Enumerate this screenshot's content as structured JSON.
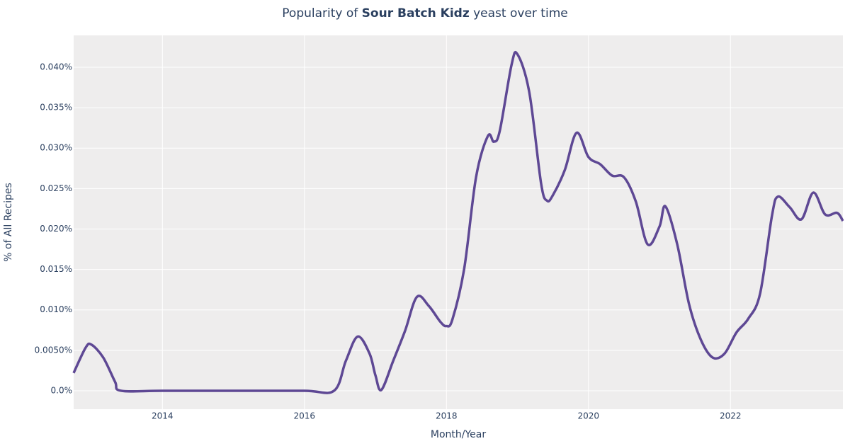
{
  "chart_data": {
    "type": "line",
    "title": {
      "prefix": "Popularity of ",
      "emphasis": "Sour Batch Kidz",
      "suffix": " yeast over time"
    },
    "x_label": "Month/Year",
    "y_label": "% of All Recipes",
    "x": [
      "2012-10",
      "2012-12",
      "2013-01",
      "2013-03",
      "2013-05",
      "2013-06",
      "2014-01",
      "2015-01",
      "2016-01",
      "2016-06",
      "2016-08",
      "2016-10",
      "2016-12",
      "2017-01",
      "2017-02",
      "2017-04",
      "2017-06",
      "2017-08",
      "2017-10",
      "2017-12",
      "2018-01",
      "2018-02",
      "2018-04",
      "2018-06",
      "2018-08",
      "2018-09",
      "2018-10",
      "2018-12",
      "2019-01",
      "2019-03",
      "2019-05",
      "2019-06",
      "2019-07",
      "2019-09",
      "2019-11",
      "2020-01",
      "2020-03",
      "2020-05",
      "2020-07",
      "2020-09",
      "2020-11",
      "2021-01",
      "2021-02",
      "2021-04",
      "2021-06",
      "2021-08",
      "2021-10",
      "2021-12",
      "2022-02",
      "2022-04",
      "2022-06",
      "2022-08",
      "2022-09",
      "2022-11",
      "2023-01",
      "2023-03",
      "2023-05",
      "2023-07",
      "2023-08"
    ],
    "series": [
      {
        "name": "Sour Batch Kidz",
        "color": "#5e4894",
        "values": [
          0.0022,
          0.0053,
          0.0057,
          0.0041,
          0.0011,
          0.0,
          0.0,
          0.0,
          0.0,
          0.0,
          0.0037,
          0.0067,
          0.0046,
          0.0019,
          0.0001,
          0.0037,
          0.0074,
          0.0116,
          0.0105,
          0.0085,
          0.008,
          0.0088,
          0.0151,
          0.0264,
          0.0315,
          0.0308,
          0.0321,
          0.0403,
          0.0416,
          0.0369,
          0.0256,
          0.0235,
          0.0242,
          0.0273,
          0.0319,
          0.0289,
          0.028,
          0.0266,
          0.0264,
          0.0234,
          0.0181,
          0.0203,
          0.0228,
          0.0181,
          0.0107,
          0.0063,
          0.0041,
          0.0046,
          0.0072,
          0.0089,
          0.012,
          0.0216,
          0.024,
          0.0227,
          0.0212,
          0.0245,
          0.0218,
          0.022,
          0.021
        ]
      }
    ],
    "xlim": [
      "2012-10",
      "2023-08"
    ],
    "xticks": [
      {
        "value": "2014-01",
        "label": "2014"
      },
      {
        "value": "2016-01",
        "label": "2016"
      },
      {
        "value": "2018-01",
        "label": "2018"
      },
      {
        "value": "2020-01",
        "label": "2020"
      },
      {
        "value": "2022-01",
        "label": "2022"
      }
    ],
    "ylim": [
      -0.00228,
      0.04394
    ],
    "yticks": [
      {
        "value": 0,
        "label": "0.0%"
      },
      {
        "value": 0.005,
        "label": "0.0050%"
      },
      {
        "value": 0.01,
        "label": "0.010%"
      },
      {
        "value": 0.015,
        "label": "0.015%"
      },
      {
        "value": 0.02,
        "label": "0.020%"
      },
      {
        "value": 0.025,
        "label": "0.025%"
      },
      {
        "value": 0.03,
        "label": "0.030%"
      },
      {
        "value": 0.035,
        "label": "0.035%"
      },
      {
        "value": 0.04,
        "label": "0.040%"
      }
    ],
    "grid": true,
    "plot_background": "#eeeded"
  }
}
